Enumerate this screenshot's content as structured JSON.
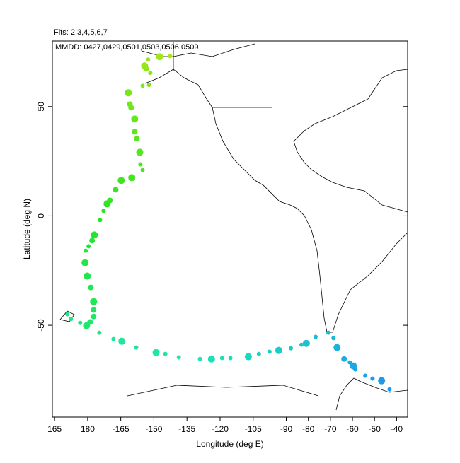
{
  "chart_data": {
    "type": "scatter",
    "title": "Flts: 2,3,4,5,6,7",
    "subtitle": "MMDD: 0427,0429,0501,0503,0506,0509",
    "x_label": "Longitude (deg E)",
    "y_label": "Latitude (deg N)",
    "xlim": [
      164,
      325
    ],
    "ylim": [
      -92,
      80
    ],
    "xticks": [
      165,
      180,
      {
        "value": 195,
        "label": "-165"
      },
      {
        "value": 210,
        "label": "-150"
      },
      {
        "value": 225,
        "label": "-135"
      },
      {
        "value": 240,
        "label": "-120"
      },
      {
        "value": 255,
        "label": "-105"
      },
      {
        "value": 270,
        "label": "-90"
      },
      {
        "value": 280,
        "label": "-80"
      },
      {
        "value": 290,
        "label": "-70"
      },
      {
        "value": 300,
        "label": "-60"
      },
      {
        "value": 310,
        "label": "-50"
      },
      {
        "value": 320,
        "label": "-40"
      }
    ],
    "yticks": [
      -50,
      0,
      50
    ],
    "color_ramp": [
      "#a6e619",
      "#22e622",
      "#1ee6b4",
      "#1a96f0"
    ],
    "x": [
      217.4,
      212.6,
      207.4,
      205.8,
      206.5,
      208.4,
      207.8,
      204.9,
      198.4,
      199.1,
      199.7,
      201.3,
      201.3,
      202.3,
      203.6,
      203.9,
      204.9,
      200.0,
      195.2,
      192.7,
      190.1,
      188.8,
      187.2,
      185.6,
      183.0,
      182.0,
      180.4,
      179.1,
      178.8,
      179.8,
      181.4,
      182.7,
      182.7,
      182.7,
      181.1,
      179.5,
      176.6,
      172.4,
      170.8,
      185.3,
      191.7,
      195.5,
      202.0,
      211.0,
      215.2,
      221.3,
      230.9,
      236.1,
      240.9,
      244.7,
      252.8,
      257.6,
      262.4,
      266.6,
      272.1,
      276.9,
      279.1,
      283.3,
      289.1,
      291.4,
      293.0,
      296.2,
      298.8,
      300.4,
      301.3,
      305.8,
      309.1,
      313.2,
      316.8
    ],
    "y": [
      73.1,
      72.8,
      71.5,
      68.6,
      67.3,
      65.4,
      59.9,
      59.5,
      56.3,
      51.1,
      49.5,
      44.3,
      38.5,
      35.3,
      29.1,
      23.6,
      21.0,
      17.5,
      16.2,
      12.0,
      7.1,
      5.5,
      2.3,
      -1.9,
      -8.7,
      -11.3,
      -13.9,
      -15.9,
      -21.4,
      -27.5,
      -32.7,
      -39.2,
      -43.0,
      -46.0,
      -48.5,
      -50.2,
      -48.9,
      -47.2,
      -45.0,
      -53.4,
      -56.3,
      -57.3,
      -60.2,
      -62.5,
      -63.1,
      -64.7,
      -65.4,
      -65.4,
      -65.0,
      -65.0,
      -64.4,
      -63.1,
      -62.1,
      -61.5,
      -60.5,
      -58.9,
      -58.3,
      -55.3,
      -53.4,
      -55.9,
      -60.2,
      -65.4,
      -67.0,
      -68.6,
      -70.2,
      -73.1,
      -74.4,
      -75.4,
      -79.3
    ],
    "sizes": [
      3,
      5,
      3,
      5,
      4,
      3,
      3,
      3,
      5,
      4,
      4,
      5,
      4,
      4,
      5,
      3,
      3,
      5,
      5,
      4,
      4,
      5,
      3,
      3,
      5,
      4,
      3,
      3,
      5,
      5,
      4,
      5,
      4,
      4,
      4,
      5,
      3,
      3,
      3,
      3,
      3,
      5,
      3,
      5,
      3,
      3,
      3,
      5,
      3,
      3,
      5,
      3,
      3,
      5,
      3,
      3,
      5,
      3,
      3,
      3,
      5,
      4,
      3,
      5,
      3,
      3,
      3,
      5,
      3
    ]
  }
}
